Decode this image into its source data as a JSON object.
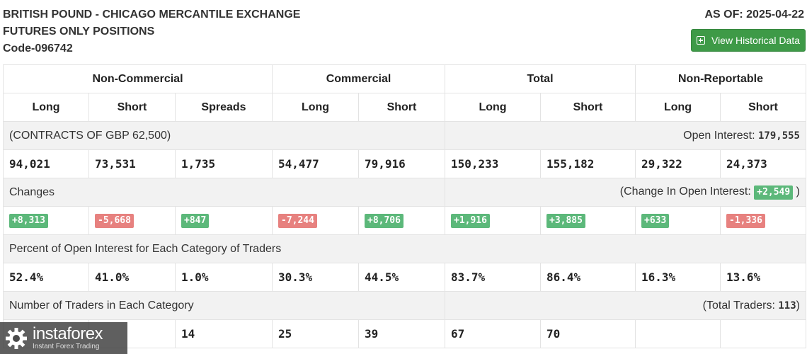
{
  "header": {
    "title_line1": "BRITISH POUND - CHICAGO MERCANTILE EXCHANGE",
    "title_line2": "FUTURES ONLY POSITIONS",
    "code": "Code-096742",
    "as_of": "AS OF: 2025-04-22",
    "history_button": "View Historical Data"
  },
  "table": {
    "groups": [
      "Non-Commercial",
      "Commercial",
      "Total",
      "Non-Reportable"
    ],
    "columns": [
      "Long",
      "Short",
      "Spreads",
      "Long",
      "Short",
      "Long",
      "Short",
      "Long",
      "Short"
    ],
    "contracts_label": "(CONTRACTS OF GBP 62,500)",
    "open_interest_label": "Open Interest:",
    "open_interest": "179,555",
    "positions": [
      "94,021",
      "73,531",
      "1,735",
      "54,477",
      "79,916",
      "150,233",
      "155,182",
      "29,322",
      "24,373"
    ],
    "changes_label": "Changes",
    "change_oi_label": "(Change In Open Interest:",
    "change_oi": "+2,549",
    "change_oi_close": ")",
    "changes": [
      "+8,313",
      "-5,668",
      "+847",
      "-7,244",
      "+8,706",
      "+1,916",
      "+3,885",
      "+633",
      "-1,336"
    ],
    "percent_label": "Percent of Open Interest for Each Category of Traders",
    "percents": [
      "52.4%",
      "41.0%",
      "1.0%",
      "30.3%",
      "44.5%",
      "83.7%",
      "86.4%",
      "16.3%",
      "13.6%"
    ],
    "traders_label": "Number of Traders in Each Category",
    "total_traders_label": "(Total Traders:",
    "total_traders": "113",
    "total_traders_close": ")",
    "traders": [
      "",
      "",
      "14",
      "25",
      "39",
      "67",
      "70",
      "",
      ""
    ]
  },
  "colors": {
    "positive": "#5cb87a",
    "negative": "#e7817f",
    "button": "#3e9a47"
  },
  "watermark": {
    "brand": "instaforex",
    "tagline": "Instant Forex Trading",
    "icon": "gear-logo-icon"
  }
}
